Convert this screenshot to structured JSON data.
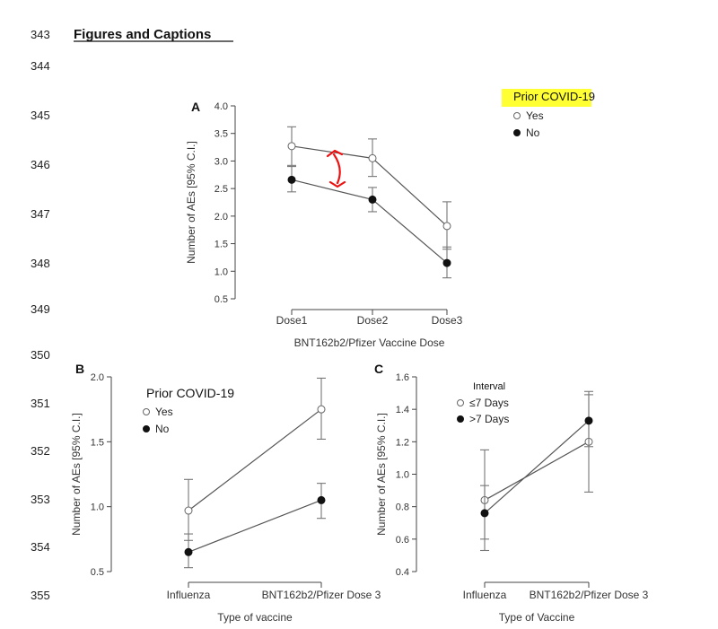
{
  "heading": "Figures and Captions",
  "line_numbers": [
    "343",
    "344",
    "345",
    "346",
    "347",
    "348",
    "349",
    "350",
    "351",
    "352",
    "353",
    "354",
    "355"
  ],
  "colors": {
    "highlight": "#ffff33",
    "annotation": "#ee1111",
    "axis": "#444444",
    "errorbar": "#777777"
  },
  "chart_data": [
    {
      "panel_label": "A",
      "type": "line",
      "categories": [
        "Dose1",
        "Dose2",
        "Dose3"
      ],
      "xlabel": "BNT162b2/Pfizer Vaccine Dose",
      "ylabel": "Number of AEs [95% C.I.]",
      "ylim": [
        0.5,
        4.0
      ],
      "yticks": [
        "0.5",
        "1.0",
        "1.5",
        "2.0",
        "2.5",
        "3.0",
        "3.5",
        "4.0"
      ],
      "legend_title": "Prior COVID-19",
      "legend_placement": "top-right",
      "series": [
        {
          "name": "Yes",
          "marker": "open",
          "values": [
            3.27,
            3.05,
            1.82
          ],
          "ci_low": [
            2.92,
            2.72,
            1.4
          ],
          "ci_high": [
            3.62,
            3.4,
            2.26
          ]
        },
        {
          "name": "No",
          "marker": "filled",
          "values": [
            2.66,
            2.3,
            1.15
          ],
          "ci_low": [
            2.44,
            2.08,
            0.88
          ],
          "ci_high": [
            2.9,
            2.52,
            1.44
          ]
        }
      ],
      "annotation": "red double-headed arrow between Dose1 and Dose2 spanning the gap between groups"
    },
    {
      "panel_label": "B",
      "type": "line",
      "categories": [
        "Influenza",
        "BNT162b2/Pfizer Dose 3"
      ],
      "xlabel": "Type of vaccine",
      "ylabel": "Number of AEs [95% C.I.]",
      "ylim": [
        0.5,
        2.0
      ],
      "yticks": [
        "0.5",
        "1.0",
        "1.5",
        "2.0"
      ],
      "legend_title": "Prior COVID-19",
      "legend_placement": "top-left",
      "series": [
        {
          "name": "Yes",
          "marker": "open",
          "values": [
            0.97,
            1.75
          ],
          "ci_low": [
            0.74,
            1.52
          ],
          "ci_high": [
            1.21,
            1.99
          ]
        },
        {
          "name": "No",
          "marker": "filled",
          "values": [
            0.65,
            1.05
          ],
          "ci_low": [
            0.53,
            0.91
          ],
          "ci_high": [
            0.79,
            1.18
          ]
        }
      ]
    },
    {
      "panel_label": "C",
      "type": "line",
      "categories": [
        "Influenza",
        "BNT162b2/Pfizer Dose 3"
      ],
      "xlabel": "Type of Vaccine",
      "ylabel": "Number of AEs [95% C.I.]",
      "ylim": [
        0.4,
        1.6
      ],
      "yticks": [
        "0.4",
        "0.6",
        "0.8",
        "1.0",
        "1.2",
        "1.4",
        "1.6"
      ],
      "legend_title": "Interval",
      "legend_placement": "top-left",
      "series": [
        {
          "name": "≤7 Days",
          "marker": "open",
          "values": [
            0.84,
            1.2
          ],
          "ci_low": [
            0.53,
            0.89
          ],
          "ci_high": [
            1.15,
            1.51
          ]
        },
        {
          "name": ">7 Days",
          "marker": "filled",
          "values": [
            0.76,
            1.33
          ],
          "ci_low": [
            0.6,
            1.17
          ],
          "ci_high": [
            0.93,
            1.49
          ]
        }
      ]
    }
  ]
}
